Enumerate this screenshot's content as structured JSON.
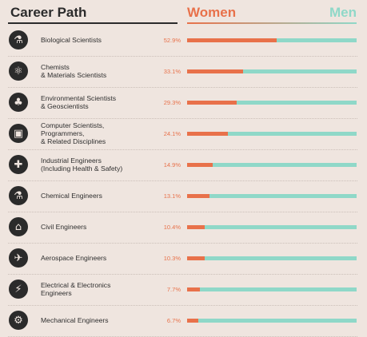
{
  "header": {
    "title": "Career Path",
    "women_label": "Women",
    "men_label": "Men"
  },
  "colors": {
    "women": "#e8714a",
    "men": "#8fd8c8",
    "text": "#2b2b2b",
    "background": "#efe5df"
  },
  "chart_data": {
    "type": "bar",
    "orientation": "horizontal-stacked-100",
    "series": [
      {
        "name": "Women"
      },
      {
        "name": "Men"
      }
    ],
    "categories": [
      "Biological Scientists",
      "Chemists\n& Materials Scientists",
      "Environmental Scientists\n& Geoscientists",
      "Computer Scientists,\nProgrammers,\n& Related Disciplines",
      "Industrial Engineers\n(Including Health & Safety)",
      "Chemical Engineers",
      "Civil Engineers",
      "Aerospace Engineers",
      "Electrical & Electronics\nEngineers",
      "Mechanical Engineers"
    ],
    "women_percent": [
      52.9,
      33.1,
      29.3,
      24.1,
      14.9,
      13.1,
      10.4,
      10.3,
      7.7,
      6.7
    ],
    "value_labels": [
      "52.9%",
      "33.1%",
      "29.3%",
      "24.1%",
      "14.9%",
      "13.1%",
      "10.4%",
      "10.3%",
      "7.7%",
      "6.7%"
    ],
    "icons": [
      "microscope-icon",
      "molecule-icon",
      "tree-icon",
      "computer-icon",
      "medical-cross-icon",
      "chemistry-icon",
      "bridge-icon",
      "airplane-icon",
      "lightning-icon",
      "gear-icon"
    ],
    "xlim": [
      0,
      100
    ]
  }
}
